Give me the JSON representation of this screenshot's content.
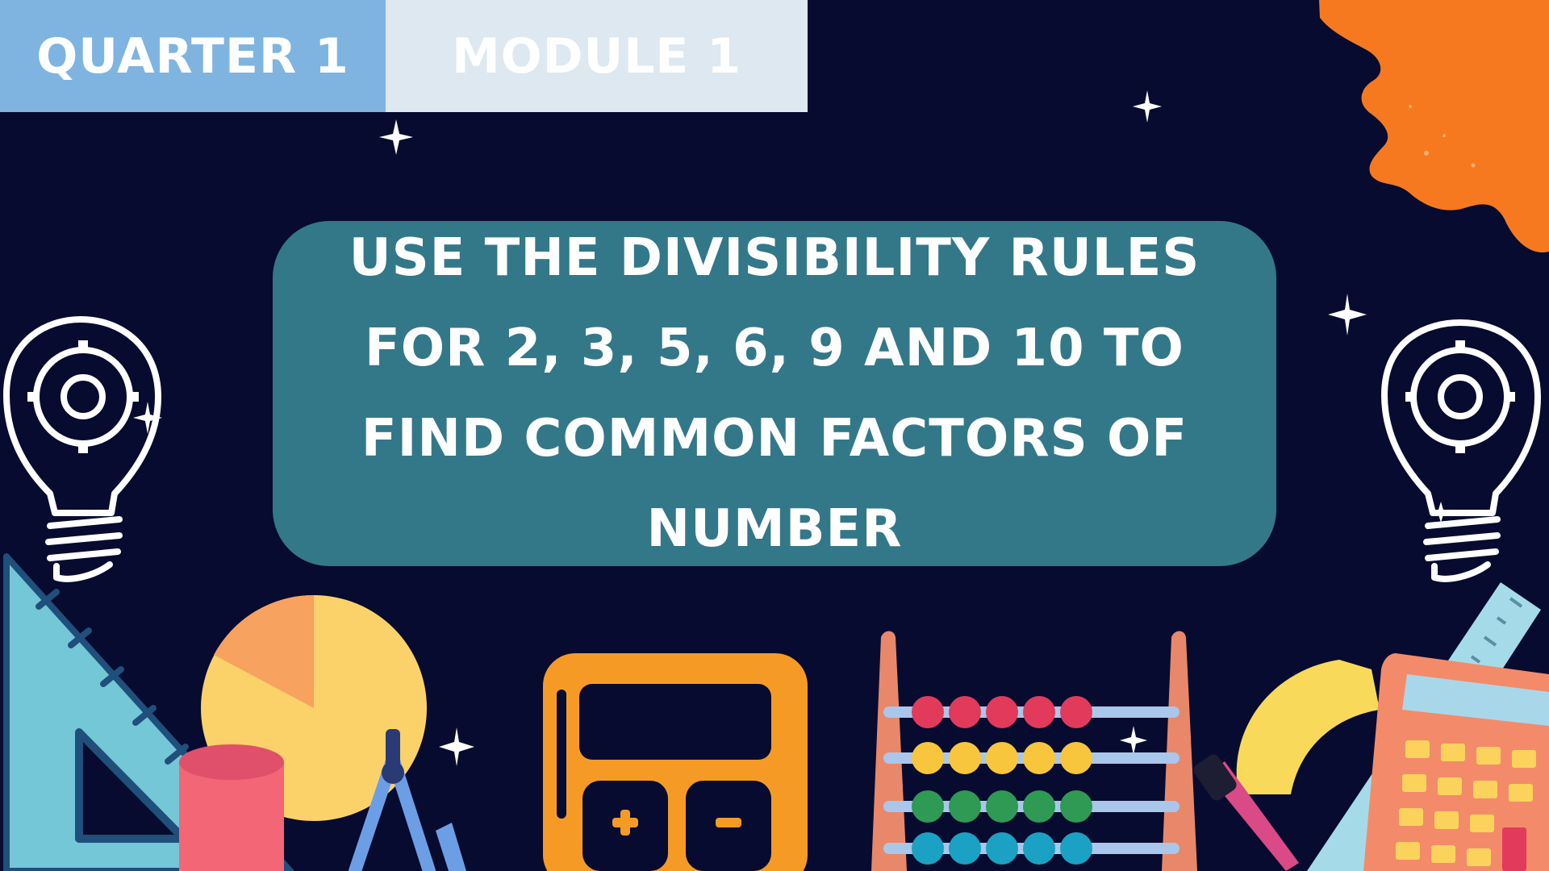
{
  "header": {
    "quarter_label": "QUARTER 1",
    "module_label": "MODULE 1"
  },
  "title": {
    "text": "USE THE DIVISIBILITY RULES FOR 2, 3, 5, 6, 9 AND 10 TO FIND COMMON FACTORS OF NUMBER"
  },
  "decorations": {
    "icons": [
      "lightbulb-gear-icon",
      "set-square-icon",
      "pie-chart-icon",
      "cylinder-icon",
      "compass-icon",
      "calculator-icon",
      "abacus-icon",
      "protractor-icon",
      "ruler-icon",
      "sparkle-icon",
      "paint-splash-icon"
    ]
  },
  "colors": {
    "background": "#070b2f",
    "tab_quarter": "#7fb4e1",
    "tab_module": "#dde8f1",
    "title_card": "#337888",
    "accent_orange": "#f7791f"
  }
}
